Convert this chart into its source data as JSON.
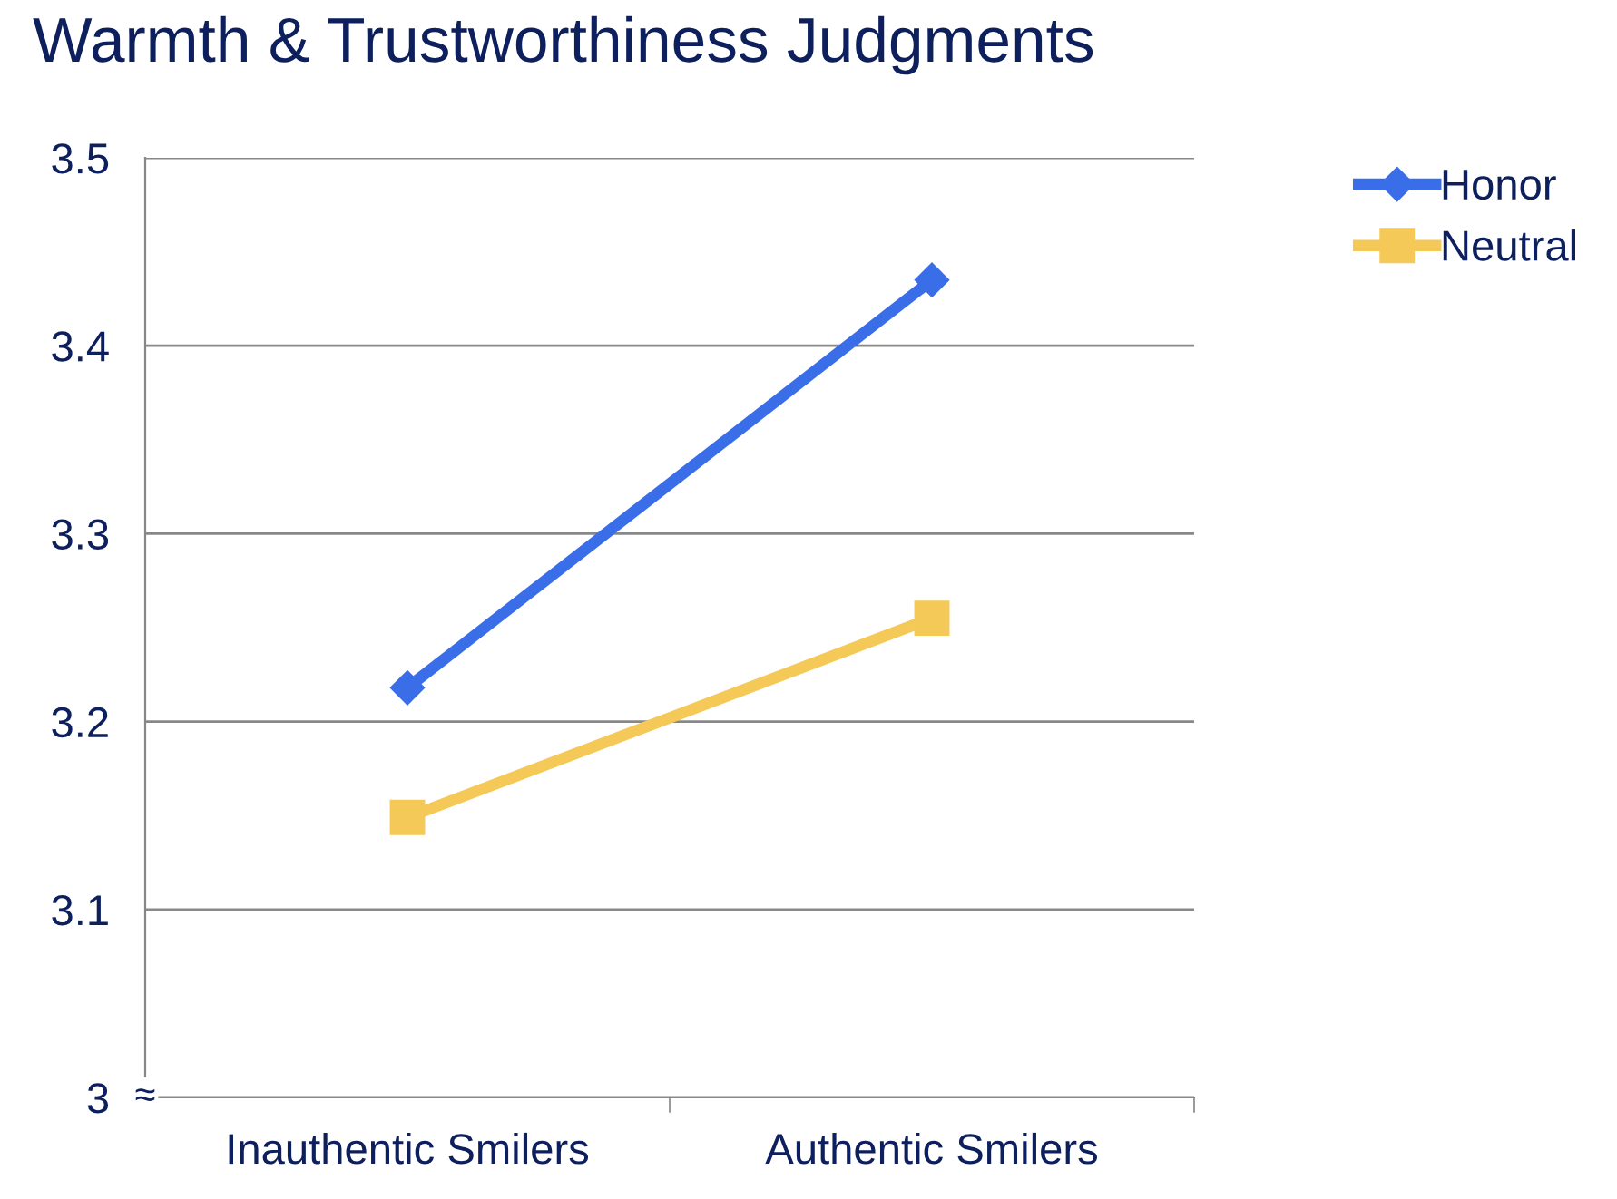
{
  "chart_data": {
    "type": "line",
    "title": "Warmth & Trustworthiness Judgments",
    "categories": [
      "Inauthentic Smilers",
      "Authentic Smilers"
    ],
    "series": [
      {
        "name": "Honor",
        "color": "#3a6ee8",
        "values": [
          3.218,
          3.435
        ],
        "marker": "diamond"
      },
      {
        "name": "Neutral",
        "color": "#f5c957",
        "values": [
          3.149,
          3.255
        ],
        "marker": "square"
      }
    ],
    "ylim": [
      3,
      3.5
    ],
    "yticks": [
      3,
      3.1,
      3.2,
      3.3,
      3.4,
      3.5
    ],
    "grid": "y",
    "legend": "top right",
    "annotations": [
      "≈"
    ]
  }
}
